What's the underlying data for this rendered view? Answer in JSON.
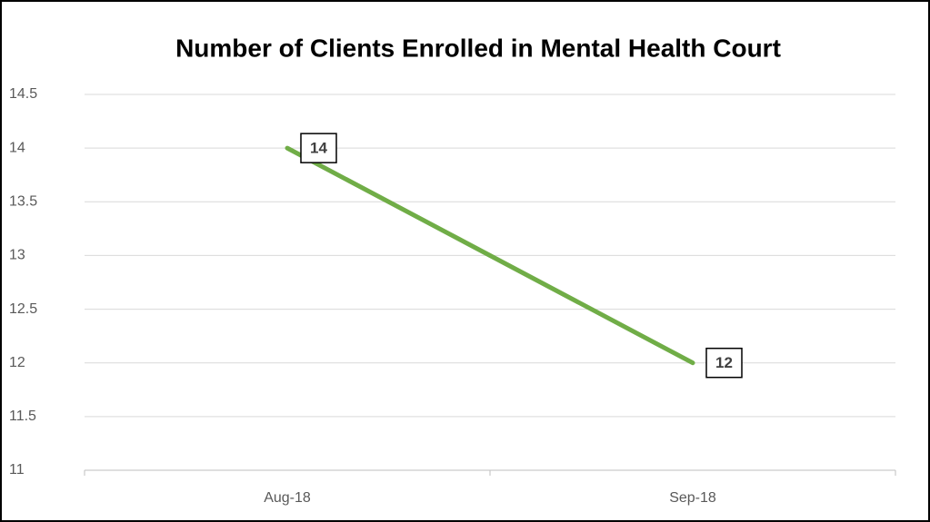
{
  "chart_data": {
    "type": "line",
    "title": "Number of Clients Enrolled in Mental Health Court",
    "categories": [
      "Aug-18",
      "Sep-18"
    ],
    "values": [
      14,
      12
    ],
    "color": "#70ad47",
    "ylim": [
      11,
      14.5
    ],
    "yticks": [
      11,
      11.5,
      12,
      12.5,
      13,
      13.5,
      14,
      14.5
    ],
    "grid": true
  }
}
